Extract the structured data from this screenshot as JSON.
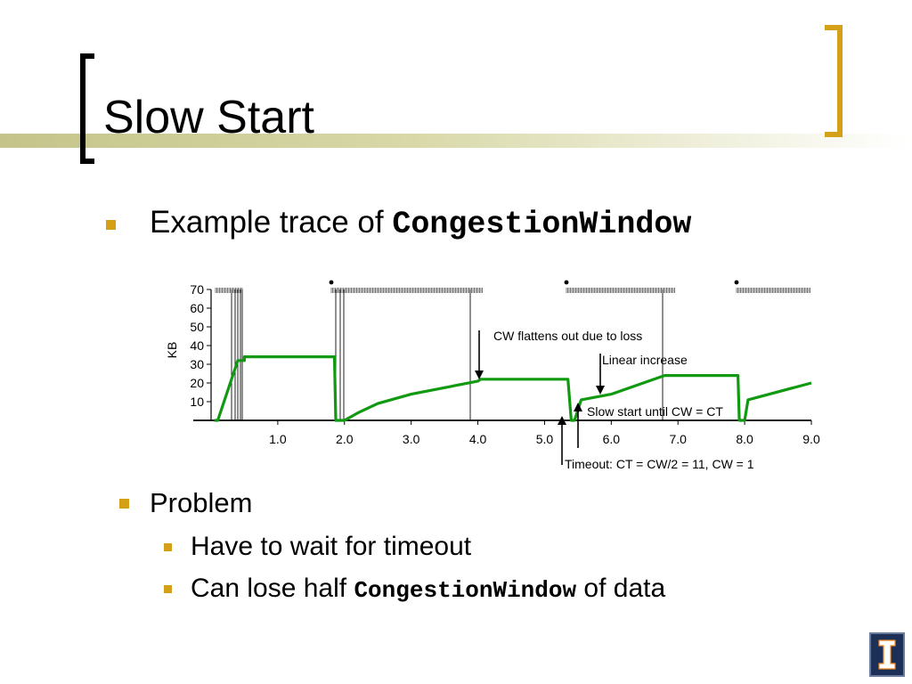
{
  "slide": {
    "title": "Slow Start",
    "bullet1": {
      "prefix": "Example trace of ",
      "code": "CongestionWindow"
    },
    "bullet2": "Problem",
    "sub1": "Have to wait for timeout",
    "sub2": {
      "prefix": "Can lose half ",
      "code": "CongestionWindow",
      "suffix": " of data"
    }
  },
  "colors": {
    "accent": "#d4a017",
    "line": "#119911",
    "logo": "#1c2f56"
  },
  "logo_icon": "illinois-block-i-icon",
  "chart_data": {
    "type": "line",
    "ylabel": "KB",
    "xlabel": "",
    "x_ticks": [
      "1.0",
      "2.0",
      "3.0",
      "4.0",
      "5.0",
      "6.0",
      "7.0",
      "8.0",
      "9.0"
    ],
    "y_ticks": [
      "70",
      "60",
      "50",
      "40",
      "30",
      "20",
      "10"
    ],
    "xlim": [
      0,
      9.0
    ],
    "ylim": [
      0,
      70
    ],
    "series": [
      {
        "values": [
          [
            0.05,
            0
          ],
          [
            0.1,
            0
          ],
          [
            0.4,
            32
          ],
          [
            0.5,
            32
          ],
          [
            0.5,
            34
          ],
          [
            1.85,
            34
          ],
          [
            1.87,
            0
          ],
          [
            2.0,
            0
          ],
          [
            2.2,
            4
          ],
          [
            2.5,
            9
          ],
          [
            3.0,
            14
          ],
          [
            3.5,
            17.5
          ],
          [
            4.0,
            21
          ],
          [
            4.04,
            22
          ],
          [
            5.35,
            22
          ],
          [
            5.4,
            0
          ],
          [
            5.45,
            0
          ],
          [
            5.55,
            11
          ],
          [
            6.0,
            14
          ],
          [
            6.8,
            24
          ],
          [
            7.9,
            24
          ],
          [
            7.92,
            0
          ],
          [
            8.0,
            0
          ],
          [
            8.05,
            11
          ],
          [
            9.0,
            20
          ]
        ]
      }
    ],
    "annotations": [
      "CW flattens out due to loss",
      "Linear increase",
      "Slow start until CW = CT",
      "Timeout: CT = CW/2 = 11, CW = 1"
    ],
    "grid": false
  }
}
